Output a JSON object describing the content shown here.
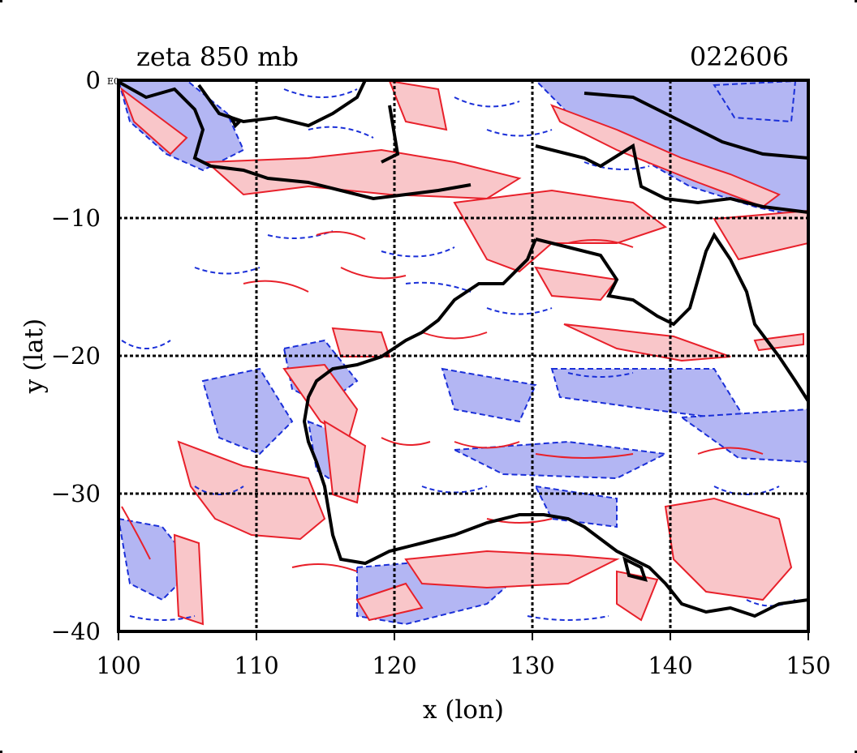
{
  "title_left": "zeta 850 mb",
  "title_right": "022606",
  "corner_note": "E0",
  "xlabel": "x (lon)",
  "ylabel": "y (lat)",
  "x_ticks": [
    "100",
    "110",
    "120",
    "130",
    "140",
    "150"
  ],
  "y_ticks": [
    "0",
    "−10",
    "−20",
    "−30",
    "−40"
  ],
  "map": {
    "lon_range": [
      100,
      150
    ],
    "lat_range": [
      -40,
      0
    ],
    "gridlines": "dashed black every 10 degrees",
    "coastline_color": "#000000",
    "positive_contour_color": "#e8202a",
    "positive_fill_color": "#f9c6c9",
    "negative_contour_color": "#1a2fd8",
    "negative_fill_color": "#b3b6f3"
  }
}
